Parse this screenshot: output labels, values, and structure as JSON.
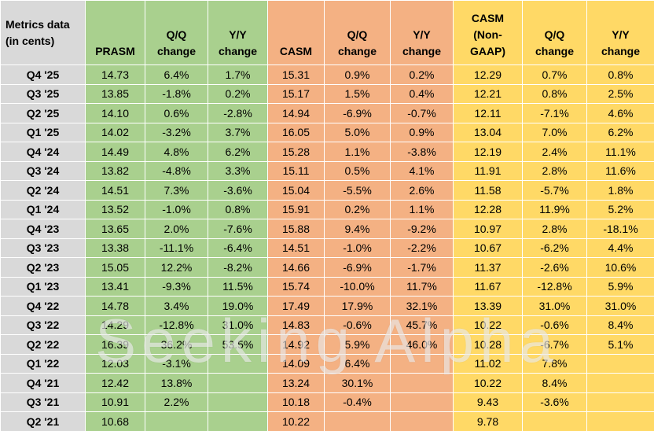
{
  "watermark": {
    "text": "Seeking Alpha"
  },
  "chart_data": {
    "type": "table",
    "title": "Metrics data (in cents) — PRASM / CASM / CASM (Non-GAAP) by quarter",
    "corner_header": "Metrics data\n(in cents)",
    "column_groups": [
      {
        "name": "PRASM",
        "color": "#A9D08E"
      },
      {
        "name": "CASM",
        "color": "#F4B183"
      },
      {
        "name": "CASM (Non-GAAP)",
        "color": "#FFD966"
      }
    ],
    "row_header_color": "#D9D9D9",
    "headers": [
      "PRASM",
      "Q/Q\nchange",
      "Y/Y\nchange",
      "CASM",
      "Q/Q\nchange",
      "Y/Y\nchange",
      "CASM\n(Non-\nGAAP)",
      "Q/Q\nchange",
      "Y/Y\nchange"
    ],
    "rows": [
      {
        "label": "Q4 '25",
        "cells": [
          "14.73",
          "6.4%",
          "1.7%",
          "15.31",
          "0.9%",
          "0.2%",
          "12.29",
          "0.7%",
          "0.8%"
        ]
      },
      {
        "label": "Q3 '25",
        "cells": [
          "13.85",
          "-1.8%",
          "0.2%",
          "15.17",
          "1.5%",
          "0.4%",
          "12.21",
          "0.8%",
          "2.5%"
        ]
      },
      {
        "label": "Q2 '25",
        "cells": [
          "14.10",
          "0.6%",
          "-2.8%",
          "14.94",
          "-6.9%",
          "-0.7%",
          "12.11",
          "-7.1%",
          "4.6%"
        ]
      },
      {
        "label": "Q1 '25",
        "cells": [
          "14.02",
          "-3.2%",
          "3.7%",
          "16.05",
          "5.0%",
          "0.9%",
          "13.04",
          "7.0%",
          "6.2%"
        ]
      },
      {
        "label": "Q4 '24",
        "cells": [
          "14.49",
          "4.8%",
          "6.2%",
          "15.28",
          "1.1%",
          "-3.8%",
          "12.19",
          "2.4%",
          "11.1%"
        ]
      },
      {
        "label": "Q3 '24",
        "cells": [
          "13.82",
          "-4.8%",
          "3.3%",
          "15.11",
          "0.5%",
          "4.1%",
          "11.91",
          "2.8%",
          "11.6%"
        ]
      },
      {
        "label": "Q2 '24",
        "cells": [
          "14.51",
          "7.3%",
          "-3.6%",
          "15.04",
          "-5.5%",
          "2.6%",
          "11.58",
          "-5.7%",
          "1.8%"
        ]
      },
      {
        "label": "Q1 '24",
        "cells": [
          "13.52",
          "-1.0%",
          "0.8%",
          "15.91",
          "0.2%",
          "1.1%",
          "12.28",
          "11.9%",
          "5.2%"
        ]
      },
      {
        "label": "Q4 '23",
        "cells": [
          "13.65",
          "2.0%",
          "-7.6%",
          "15.88",
          "9.4%",
          "-9.2%",
          "10.97",
          "2.8%",
          "-18.1%"
        ]
      },
      {
        "label": "Q3 '23",
        "cells": [
          "13.38",
          "-11.1%",
          "-6.4%",
          "14.51",
          "-1.0%",
          "-2.2%",
          "10.67",
          "-6.2%",
          "4.4%"
        ]
      },
      {
        "label": "Q2 '23",
        "cells": [
          "15.05",
          "12.2%",
          "-8.2%",
          "14.66",
          "-6.9%",
          "-1.7%",
          "11.37",
          "-2.6%",
          "10.6%"
        ]
      },
      {
        "label": "Q1 '23",
        "cells": [
          "13.41",
          "-9.3%",
          "11.5%",
          "15.74",
          "-10.0%",
          "11.7%",
          "11.67",
          "-12.8%",
          "5.9%"
        ]
      },
      {
        "label": "Q4 '22",
        "cells": [
          "14.78",
          "3.4%",
          "19.0%",
          "17.49",
          "17.9%",
          "32.1%",
          "13.39",
          "31.0%",
          "31.0%"
        ]
      },
      {
        "label": "Q3 '22",
        "cells": [
          "14.29",
          "-12.8%",
          "31.0%",
          "14.83",
          "-0.6%",
          "45.7%",
          "10.22",
          "-0.6%",
          "8.4%"
        ]
      },
      {
        "label": "Q2 '22",
        "cells": [
          "16.39",
          "36.2%",
          "53.5%",
          "14.92",
          "5.9%",
          "46.0%",
          "10.28",
          "-6.7%",
          "5.1%"
        ]
      },
      {
        "label": "Q1 '22",
        "cells": [
          "12.03",
          "-3.1%",
          "",
          "14.09",
          "6.4%",
          "",
          "11.02",
          "7.8%",
          ""
        ]
      },
      {
        "label": "Q4 '21",
        "cells": [
          "12.42",
          "13.8%",
          "",
          "13.24",
          "30.1%",
          "",
          "10.22",
          "8.4%",
          ""
        ]
      },
      {
        "label": "Q3 '21",
        "cells": [
          "10.91",
          "2.2%",
          "",
          "10.18",
          "-0.4%",
          "",
          "9.43",
          "-3.6%",
          ""
        ]
      },
      {
        "label": "Q2 '21",
        "cells": [
          "10.68",
          "",
          "",
          "10.22",
          "",
          "",
          "9.78",
          "",
          ""
        ]
      }
    ]
  }
}
